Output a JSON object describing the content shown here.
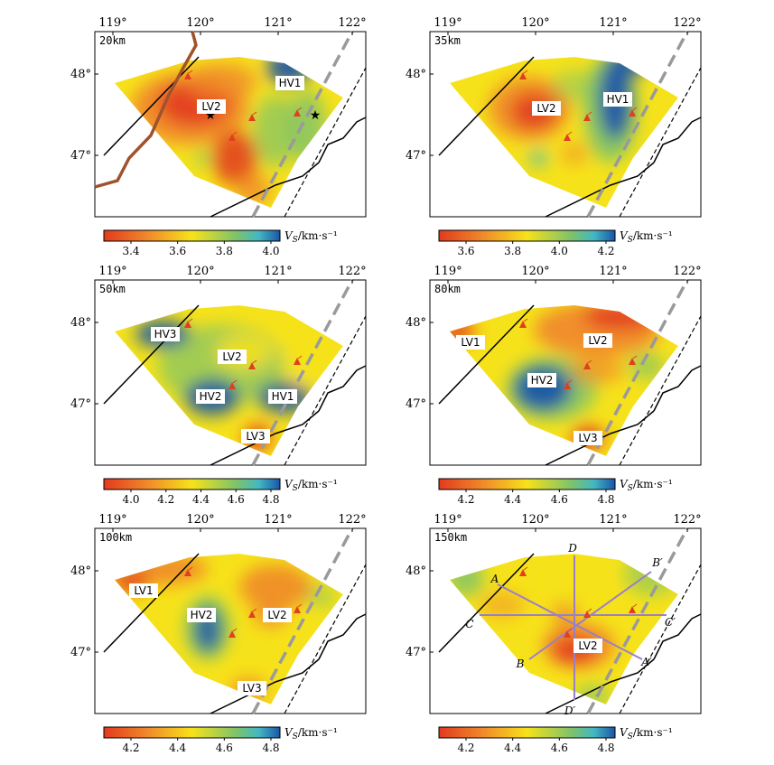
{
  "longitude_ticks": [
    "119°",
    "120°",
    "121°",
    "122°"
  ],
  "latitude_ticks": [
    "48°",
    "47°"
  ],
  "colorbar_units": {
    "symbol": "V",
    "subscript": "S",
    "rest": "/km·s⁻¹"
  },
  "colors": {
    "red": "#e23a1e",
    "orange": "#f08a2a",
    "yellow": "#f6e21a",
    "green": "#7fc36a",
    "cyan": "#43b7c2",
    "blue": "#1a56a8",
    "fault": "#000000",
    "border": "#a0522d",
    "dashed_gray": "#9a9a9a",
    "volcano": "#e0401f",
    "profile": "#9a7fc8"
  },
  "panels": [
    {
      "depth": "20km",
      "colorbar_ticks": [
        "3.4",
        "3.6",
        "3.8",
        "4.0"
      ],
      "anomalies": [
        "LV2",
        "HV1"
      ],
      "palette": "p20"
    },
    {
      "depth": "35km",
      "colorbar_ticks": [
        "3.6",
        "3.8",
        "4.0",
        "4.2"
      ],
      "anomalies": [
        "LV2",
        "HV1"
      ],
      "palette": "p35"
    },
    {
      "depth": "50km",
      "colorbar_ticks": [
        "4.0",
        "4.2",
        "4.4",
        "4.6",
        "4.8"
      ],
      "anomalies": [
        "HV3",
        "LV2",
        "HV2",
        "HV1",
        "LV3"
      ],
      "palette": "p50"
    },
    {
      "depth": "80km",
      "colorbar_ticks": [
        "4.2",
        "4.4",
        "4.6",
        "4.8"
      ],
      "anomalies": [
        "LV1",
        "LV2",
        "HV2",
        "LV3"
      ],
      "palette": "p80"
    },
    {
      "depth": "100km",
      "colorbar_ticks": [
        "4.2",
        "4.4",
        "4.6",
        "4.8"
      ],
      "anomalies": [
        "LV1",
        "HV2",
        "LV2",
        "LV3"
      ],
      "palette": "p100"
    },
    {
      "depth": "150km",
      "colorbar_ticks": [
        "4.2",
        "4.4",
        "4.6",
        "4.8"
      ],
      "anomalies": [
        "LV2"
      ],
      "profile_labels": [
        "A",
        "A′",
        "B",
        "B′",
        "C",
        "C′",
        "D",
        "D′"
      ],
      "palette": "p150"
    }
  ]
}
